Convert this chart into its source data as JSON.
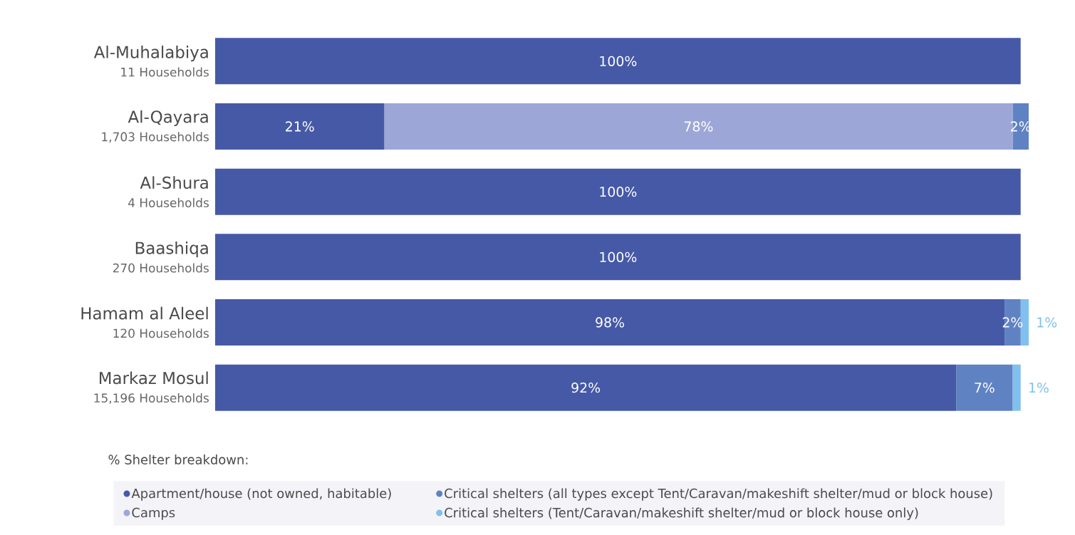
{
  "chart_data": {
    "type": "bar",
    "orientation": "horizontal",
    "stacked": true,
    "legend": "bottom",
    "legend_title": "% Shelter breakdown:",
    "categories": [
      "Al-Muhalabiya",
      "Al-Qayara",
      "Al-Shura",
      "Baashiqa",
      "Hamam al Aleel",
      "Markaz Mosul"
    ],
    "annotations": [
      "11 Households",
      "1,703 Households",
      "4 Households",
      "270 Households",
      "120 Households",
      "15,196 Households"
    ],
    "marker": "circle",
    "series": [
      {
        "name": "Apartment/house (not owned, habitable)",
        "color": "#4659a7",
        "values": [
          100,
          21,
          100,
          100,
          98,
          92
        ],
        "value_labels": [
          "100%",
          "21%",
          "100%",
          "100%",
          "98%",
          "92%"
        ]
      },
      {
        "name": "Camps",
        "color": "#9da7d7",
        "values": [
          null,
          78,
          null,
          null,
          null,
          null
        ],
        "value_labels": [
          null,
          "78%",
          null,
          null,
          null,
          null
        ]
      },
      {
        "name": "Critical shelters (all types except Tent/Caravan/makeshift shelter/mud or block house)",
        "color": "#5f82c3",
        "values": [
          null,
          2,
          null,
          null,
          2,
          7
        ],
        "value_labels": [
          null,
          "2%",
          null,
          null,
          "2%",
          "7%"
        ]
      },
      {
        "name": "Critical shelters (Tent/Caravan/makeshift shelter/mud or block house only)",
        "color": "#7fc0ee",
        "values": [
          null,
          null,
          null,
          null,
          1,
          1
        ],
        "value_labels": [
          null,
          null,
          null,
          null,
          "1%",
          "1%"
        ]
      }
    ]
  }
}
